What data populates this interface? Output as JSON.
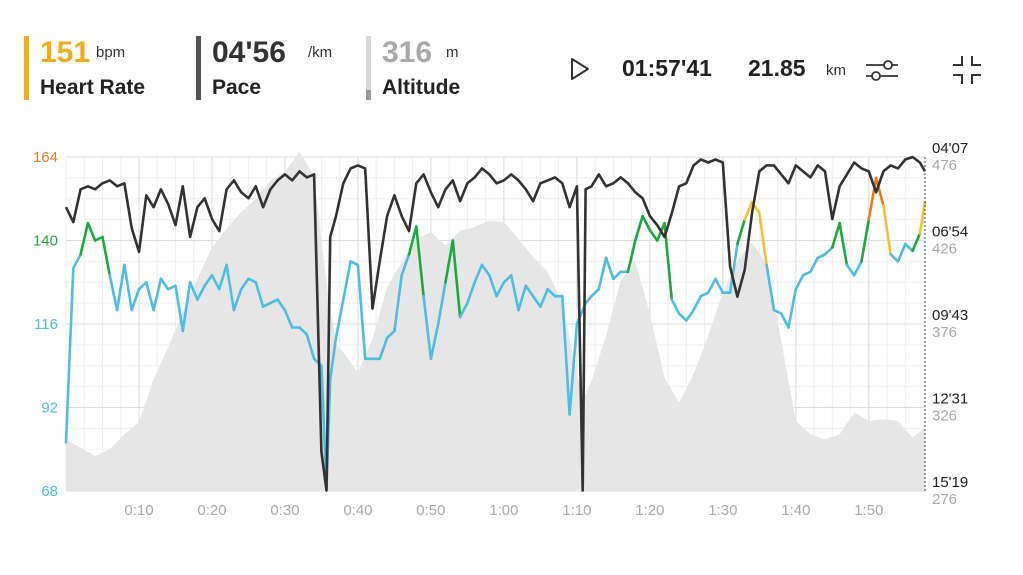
{
  "header": {
    "heart_rate": {
      "value": "151",
      "unit": "bpm",
      "label": "Heart Rate"
    },
    "pace": {
      "value": "04'56",
      "unit": "/km",
      "label": "Pace"
    },
    "altitude": {
      "value": "316",
      "unit": "m",
      "label": "Altitude"
    },
    "duration": "01:57'41",
    "distance": {
      "value": "21.85",
      "unit": "km"
    },
    "icons": {
      "play": "play-icon",
      "settings": "sliders-icon",
      "collapse": "collapse-icon"
    }
  },
  "colors": {
    "heart_rate_low": "#4bbde6",
    "heart_rate_mid": "#1aaa3c",
    "heart_rate_high": "#f5c030",
    "heart_rate_max": "#f07a1a",
    "heart_rate_accent": "#f0ac1a",
    "pace": "#333333",
    "altitude": "#e6e6e6"
  },
  "chart_data": {
    "type": "line",
    "x_ticks": [
      "0:10",
      "0:20",
      "0:30",
      "0:40",
      "0:50",
      "1:00",
      "1:10",
      "1:20",
      "1:30",
      "1:40",
      "1:50"
    ],
    "xlim_minutes": [
      0,
      117.7
    ],
    "left_axis": {
      "ticks": [
        "164",
        "140",
        "116",
        "92",
        "68"
      ],
      "ylim": [
        68,
        164
      ],
      "tick_colors": [
        "#f07a1a",
        "#1aaa3c",
        "#4bbde6",
        "#4bbde6",
        "#4bbde6"
      ]
    },
    "right_axis_pace": {
      "ticks": [
        "04'07",
        "06'54",
        "09'43",
        "12'31",
        "15'19"
      ]
    },
    "right_axis_altitude": {
      "ticks": [
        "476",
        "426",
        "376",
        "326",
        "276"
      ],
      "ylim": [
        276,
        476
      ]
    },
    "grid": true,
    "series": [
      {
        "name": "Heart Rate",
        "unit": "bpm",
        "x": [
          0,
          1,
          2,
          3,
          4,
          5,
          6,
          7,
          8,
          9,
          10,
          11,
          12,
          13,
          14,
          15,
          16,
          17,
          18,
          19,
          20,
          21,
          22,
          23,
          24,
          25,
          26,
          27,
          28,
          29,
          30,
          31,
          32,
          33,
          34,
          35,
          35.7,
          36.2,
          37,
          38,
          39,
          40,
          41,
          42,
          43,
          44,
          45,
          46,
          47,
          48,
          49,
          50,
          51,
          52,
          53,
          54,
          55,
          56,
          57,
          58,
          59,
          60,
          61,
          62,
          63,
          64,
          65,
          66,
          67,
          68,
          69,
          70,
          70.8,
          71.2,
          72,
          73,
          74,
          75,
          76,
          77,
          78,
          79,
          80,
          81,
          82,
          83,
          84,
          85,
          86,
          87,
          88,
          89,
          90,
          91,
          92,
          93,
          94,
          95,
          96,
          97,
          98,
          99,
          100,
          101,
          102,
          103,
          104,
          105,
          106,
          107,
          108,
          109,
          110,
          111,
          112,
          113,
          114,
          115,
          116,
          117,
          117.7
        ],
        "values": [
          82,
          132,
          136,
          145,
          140,
          141,
          130,
          120,
          133,
          120,
          126,
          128,
          120,
          129,
          126,
          127,
          114,
          128,
          123,
          127,
          130,
          126,
          133,
          120,
          126,
          129,
          128,
          121,
          122,
          123,
          120,
          115,
          115,
          113,
          106,
          104,
          69,
          100,
          112,
          123,
          134,
          133,
          106,
          106,
          106,
          112,
          114,
          130,
          136,
          144,
          124,
          106,
          116,
          128,
          140,
          118,
          122,
          128,
          133,
          130,
          124,
          128,
          130,
          120,
          127,
          124,
          121,
          126,
          124,
          124,
          90,
          116,
          120,
          122,
          124,
          126,
          135,
          129,
          131,
          131,
          140,
          147,
          143,
          140,
          145,
          123,
          119,
          117,
          120,
          124,
          125,
          129,
          125,
          125,
          139,
          146,
          151,
          148,
          133,
          120,
          119,
          115,
          126,
          130,
          131,
          135,
          136,
          138,
          145,
          133,
          130,
          134,
          146,
          158,
          150,
          136,
          134,
          139,
          137,
          142,
          151
        ]
      },
      {
        "name": "Pace",
        "unit": "min/km",
        "x": [
          0,
          1,
          2,
          3,
          4,
          5,
          6,
          7,
          8,
          9,
          10,
          11,
          12,
          13,
          14,
          15,
          16,
          17,
          18,
          19,
          20,
          21,
          22,
          23,
          24,
          25,
          26,
          27,
          28,
          29,
          30,
          31,
          32,
          33,
          34,
          35,
          35.7,
          36.2,
          37,
          38,
          39,
          40,
          41,
          42,
          43,
          44,
          45,
          46,
          47,
          48,
          49,
          50,
          51,
          52,
          53,
          54,
          55,
          56,
          57,
          58,
          59,
          60,
          61,
          62,
          63,
          64,
          65,
          66,
          67,
          68,
          69,
          70,
          70.8,
          71.2,
          72,
          73,
          74,
          75,
          76,
          77,
          78,
          79,
          80,
          81,
          82,
          83,
          84,
          85,
          86,
          87,
          88,
          89,
          90,
          91,
          92,
          93,
          94,
          95,
          96,
          97,
          98,
          99,
          100,
          101,
          102,
          103,
          104,
          105,
          106,
          107,
          108,
          109,
          110,
          111,
          112,
          113,
          114,
          115,
          116,
          117,
          117.7
        ],
        "values": [
          5.8,
          6.3,
          5.2,
          5.1,
          5.2,
          5.0,
          4.9,
          5.1,
          5.0,
          6.5,
          7.3,
          5.4,
          5.8,
          5.2,
          5.7,
          6.4,
          5.1,
          6.8,
          5.8,
          5.5,
          6.2,
          6.6,
          5.2,
          4.9,
          5.3,
          5.5,
          5.1,
          5.8,
          5.2,
          4.9,
          4.7,
          4.9,
          4.6,
          4.8,
          4.7,
          14.0,
          15.3,
          6.8,
          6.1,
          5.0,
          4.5,
          4.4,
          4.5,
          9.2,
          7.6,
          6.1,
          5.4,
          6.1,
          6.6,
          5.0,
          4.7,
          5.3,
          5.8,
          5.2,
          4.9,
          5.6,
          5.0,
          4.8,
          4.5,
          4.7,
          5.0,
          4.9,
          4.7,
          4.9,
          5.2,
          5.6,
          5.0,
          4.9,
          4.8,
          5.0,
          5.8,
          5.1,
          15.3,
          5.2,
          5.1,
          4.7,
          5.1,
          5.0,
          4.8,
          5.0,
          5.3,
          5.5,
          6.1,
          6.4,
          6.8,
          6.0,
          5.1,
          5.0,
          4.4,
          4.2,
          4.3,
          4.2,
          4.3,
          7.8,
          8.8,
          7.9,
          6.0,
          4.6,
          4.4,
          4.4,
          4.7,
          5.0,
          4.4,
          4.6,
          4.8,
          4.4,
          4.6,
          6.2,
          5.1,
          4.7,
          4.3,
          4.5,
          4.6,
          5.3,
          4.6,
          4.4,
          4.5,
          4.2,
          4.1,
          4.3,
          4.6
        ]
      },
      {
        "name": "Altitude",
        "unit": "m",
        "x": [
          0,
          2,
          4,
          6,
          8,
          10,
          12,
          14,
          16,
          18,
          20,
          22,
          24,
          26,
          28,
          30,
          32,
          34,
          35,
          36,
          37,
          38,
          40,
          42,
          44,
          46,
          48,
          50,
          52,
          54,
          56,
          58,
          60,
          62,
          64,
          66,
          68,
          70,
          71,
          72,
          74,
          76,
          78,
          80,
          82,
          84,
          86,
          88,
          90,
          92,
          94,
          96,
          98,
          100,
          102,
          104,
          106,
          108,
          110,
          112,
          114,
          116,
          117.7
        ],
        "values": [
          307,
          302,
          297,
          301,
          310,
          317,
          343,
          362,
          383,
          403,
          422,
          433,
          443,
          451,
          462,
          467,
          479,
          465,
          426,
          391,
          364,
          359,
          347,
          367,
          398,
          413,
          427,
          431,
          423,
          432,
          434,
          438,
          437,
          427,
          416,
          407,
          389,
          346,
          332,
          342,
          369,
          402,
          414,
          382,
          344,
          329,
          346,
          369,
          395,
          414,
          425,
          412,
          366,
          318,
          310,
          307,
          310,
          323,
          318,
          319,
          318,
          308,
          314
        ]
      }
    ]
  }
}
